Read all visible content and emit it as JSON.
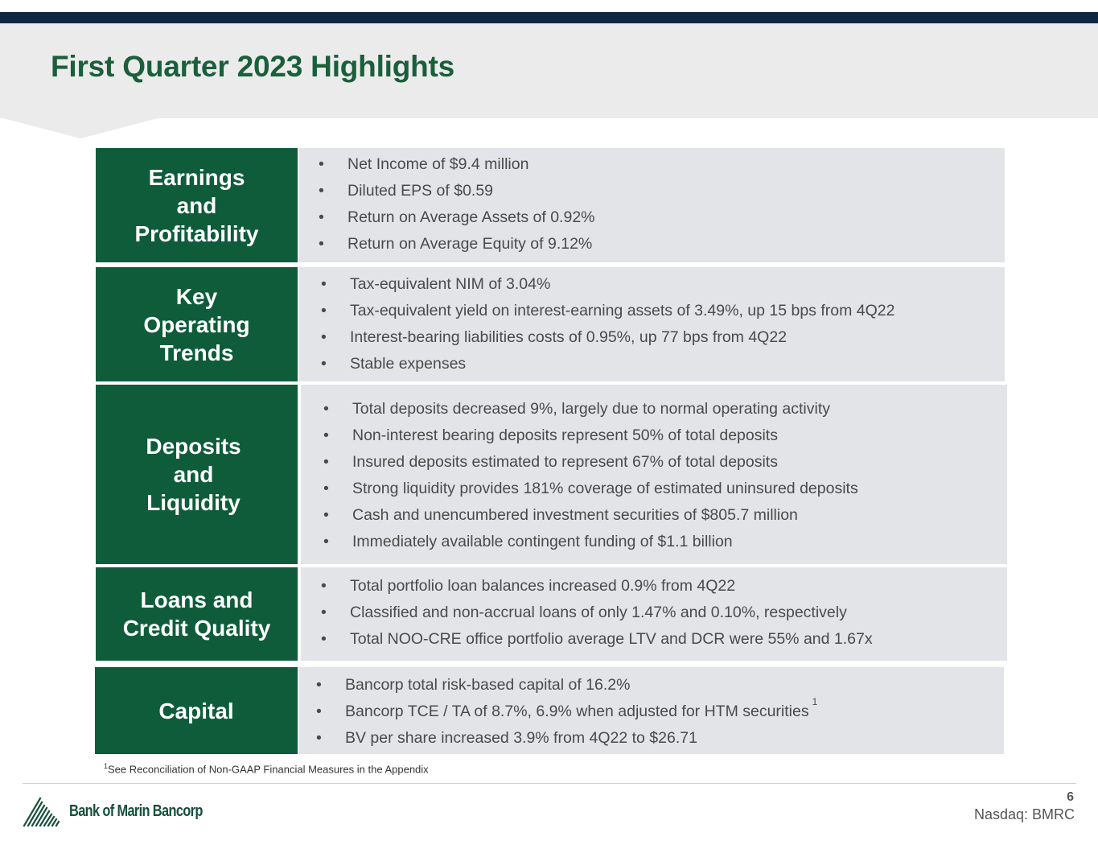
{
  "title": "First Quarter 2023 Highlights",
  "sections": [
    {
      "label_lines": [
        "Earnings",
        "and",
        "Profitability"
      ],
      "bullets": [
        "Net Income of $9.4 million",
        "Diluted EPS of $0.59",
        "Return on Average Assets of 0.92%",
        "Return on Average Equity of 9.12%"
      ]
    },
    {
      "label_lines": [
        "Key",
        "Operating",
        "Trends"
      ],
      "bullets": [
        "Tax-equivalent NIM of 3.04%",
        "Tax-equivalent yield on interest-earning assets of 3.49%, up 15 bps from 4Q22",
        "Interest-bearing liabilities costs of 0.95%, up 77 bps from 4Q22",
        "Stable expenses"
      ]
    },
    {
      "label_lines": [
        "Deposits",
        "and",
        "Liquidity"
      ],
      "bullets": [
        "Total deposits decreased 9%, largely due to normal operating activity",
        "Non-interest bearing deposits represent 50% of total deposits",
        "Insured deposits estimated to represent 67% of total deposits",
        "Strong liquidity provides 181% coverage of estimated uninsured deposits",
        "Cash and unencumbered investment securities of $805.7 million",
        "Immediately available contingent funding of $1.1 billion"
      ]
    },
    {
      "label_lines": [
        "Loans and",
        "Credit Quality"
      ],
      "bullets": [
        "Total portfolio loan balances increased 0.9% from 4Q22",
        "Classified and non-accrual loans of only 1.47% and 0.10%, respectively",
        "Total NOO-CRE office portfolio average LTV and DCR were 55% and 1.67x"
      ]
    },
    {
      "label_lines": [
        "Capital"
      ],
      "bullets": [
        "Bancorp total risk-based capital of 16.2%",
        "Bancorp TCE / TA of 8.7%, 6.9% when adjusted for HTM securities",
        "BV per share increased 3.9% from 4Q22 to $26.71"
      ],
      "bullet_footnote_marker": "1"
    }
  ],
  "footnote": {
    "marker": "1",
    "text": "See Reconciliation of Non-GAAP Financial Measures in the Appendix"
  },
  "footer": {
    "page_number": "6",
    "ticker": "Nasdaq: BMRC",
    "logo_text": "Bank of Marin Bancorp",
    "logo_icon": "mountain-lines-icon"
  },
  "colors": {
    "accent_green": "#0f5c3b",
    "title_green": "#1a5f3a",
    "top_bar": "#0f2742",
    "panel_gray": "#e2e4e7",
    "header_gray": "#ebebec"
  }
}
